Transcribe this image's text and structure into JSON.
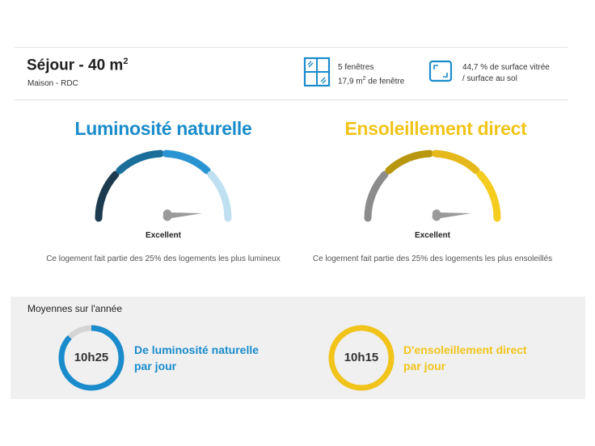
{
  "room": {
    "title": "Séjour - 40 m",
    "title_sup": "2",
    "subtitle": "Maison - RDC"
  },
  "stats": {
    "windows_count": "5 fenêtres",
    "window_area": "17,9 m",
    "window_area_sup": "2",
    "window_area_suffix": " de fenêtre",
    "glazed_ratio_line1": "44,7 % de surface vitrée",
    "glazed_ratio_line2": "/ surface au sol"
  },
  "luminosity": {
    "title": "Luminosité naturelle",
    "rating": "Excellent",
    "description": "Ce logement fait partie des 25% des logements les plus lumineux",
    "color": "#1a8ccc",
    "segment_colors": [
      "#1d3b4f",
      "#1a6e99",
      "#2a93d1",
      "#bfe0f1"
    ]
  },
  "sunshine": {
    "title": "Ensoleillement direct",
    "rating": "Excellent",
    "description": "Ce logement fait partie des 25% des logements les plus ensoleillés",
    "color": "#f2c41a",
    "segment_colors": [
      "#8c8c8c",
      "#b8960f",
      "#e5b91b",
      "#f5cd1f"
    ]
  },
  "averages": {
    "title": "Moyennes sur l'année",
    "luminosity": {
      "value": "10h25",
      "label_line1": "De luminosité naturelle",
      "label_line2": "par jour",
      "fraction": 0.87,
      "color": "#1a8ccc",
      "track_color": "#d4d4d4"
    },
    "sunshine": {
      "value": "10h15",
      "label_line1": "D'ensoleillement direct",
      "label_line2": "par jour",
      "fraction": 1.0,
      "color": "#f2c41a",
      "track_color": "#d4d4d4"
    }
  }
}
